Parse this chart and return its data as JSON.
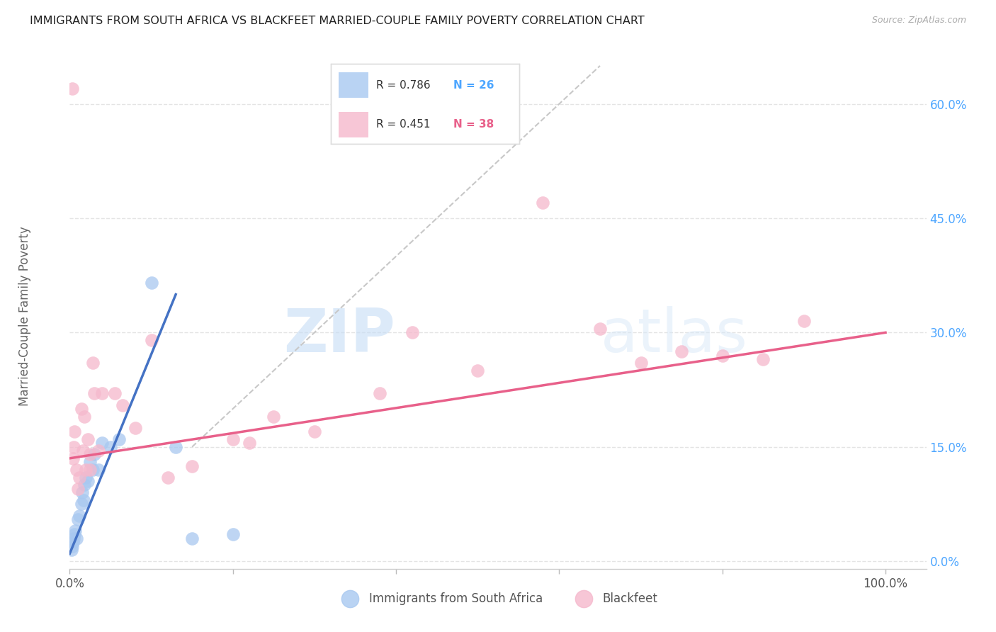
{
  "title": "IMMIGRANTS FROM SOUTH AFRICA VS BLACKFEET MARRIED-COUPLE FAMILY POVERTY CORRELATION CHART",
  "source": "Source: ZipAtlas.com",
  "ylabel": "Married-Couple Family Poverty",
  "ytick_labels": [
    "0.0%",
    "15.0%",
    "30.0%",
    "45.0%",
    "60.0%"
  ],
  "ytick_values": [
    0,
    15,
    30,
    45,
    60
  ],
  "xlim": [
    0,
    105
  ],
  "ylim": [
    -1,
    67
  ],
  "watermark_zip": "ZIP",
  "watermark_atlas": "atlas",
  "legend_blue_r": "R = 0.786",
  "legend_blue_n": "N = 26",
  "legend_pink_r": "R = 0.451",
  "legend_pink_n": "N = 38",
  "legend_label_blue": "Immigrants from South Africa",
  "legend_label_pink": "Blackfeet",
  "blue_color": "#a8c8f0",
  "pink_color": "#f5b8cc",
  "blue_line_color": "#4472c4",
  "pink_line_color": "#e8608a",
  "ref_line_color": "#c8c8c8",
  "background_color": "#ffffff",
  "grid_color": "#e4e4e4",
  "title_color": "#222222",
  "axis_label_color": "#666666",
  "ytick_color": "#4da6ff",
  "blue_scatter_x": [
    0.2,
    0.3,
    0.4,
    0.5,
    0.6,
    0.7,
    0.8,
    1.0,
    1.2,
    1.4,
    1.5,
    1.7,
    1.8,
    2.0,
    2.2,
    2.5,
    2.8,
    3.0,
    3.5,
    4.0,
    5.0,
    6.0,
    10.0,
    13.0,
    15.0,
    20.0
  ],
  "blue_scatter_y": [
    1.5,
    2.0,
    2.5,
    3.0,
    3.5,
    4.0,
    3.0,
    5.5,
    6.0,
    7.5,
    9.0,
    8.0,
    10.0,
    11.0,
    10.5,
    13.0,
    12.0,
    14.0,
    12.0,
    15.5,
    15.0,
    16.0,
    36.5,
    15.0,
    3.0,
    3.5
  ],
  "pink_scatter_x": [
    0.3,
    0.4,
    0.6,
    0.8,
    1.0,
    1.2,
    1.4,
    1.6,
    1.8,
    2.0,
    2.2,
    2.5,
    2.8,
    3.0,
    3.5,
    4.0,
    5.5,
    6.5,
    8.0,
    10.0,
    12.0,
    15.0,
    20.0,
    22.0,
    25.0,
    30.0,
    38.0,
    42.0,
    50.0,
    58.0,
    65.0,
    70.0,
    75.0,
    80.0,
    85.0,
    90.0,
    2.5,
    0.5
  ],
  "pink_scatter_y": [
    62.0,
    13.5,
    17.0,
    12.0,
    9.5,
    11.0,
    20.0,
    14.5,
    19.0,
    12.0,
    16.0,
    14.0,
    26.0,
    22.0,
    14.5,
    22.0,
    22.0,
    20.5,
    17.5,
    29.0,
    11.0,
    12.5,
    16.0,
    15.5,
    19.0,
    17.0,
    22.0,
    30.0,
    25.0,
    47.0,
    30.5,
    26.0,
    27.5,
    27.0,
    26.5,
    31.5,
    12.0,
    15.0
  ],
  "blue_line_x0": 0.0,
  "blue_line_y0": 1.0,
  "blue_line_x1": 13.0,
  "blue_line_y1": 35.0,
  "pink_line_x0": 0.0,
  "pink_line_y0": 13.5,
  "pink_line_x1": 100.0,
  "pink_line_y1": 30.0
}
